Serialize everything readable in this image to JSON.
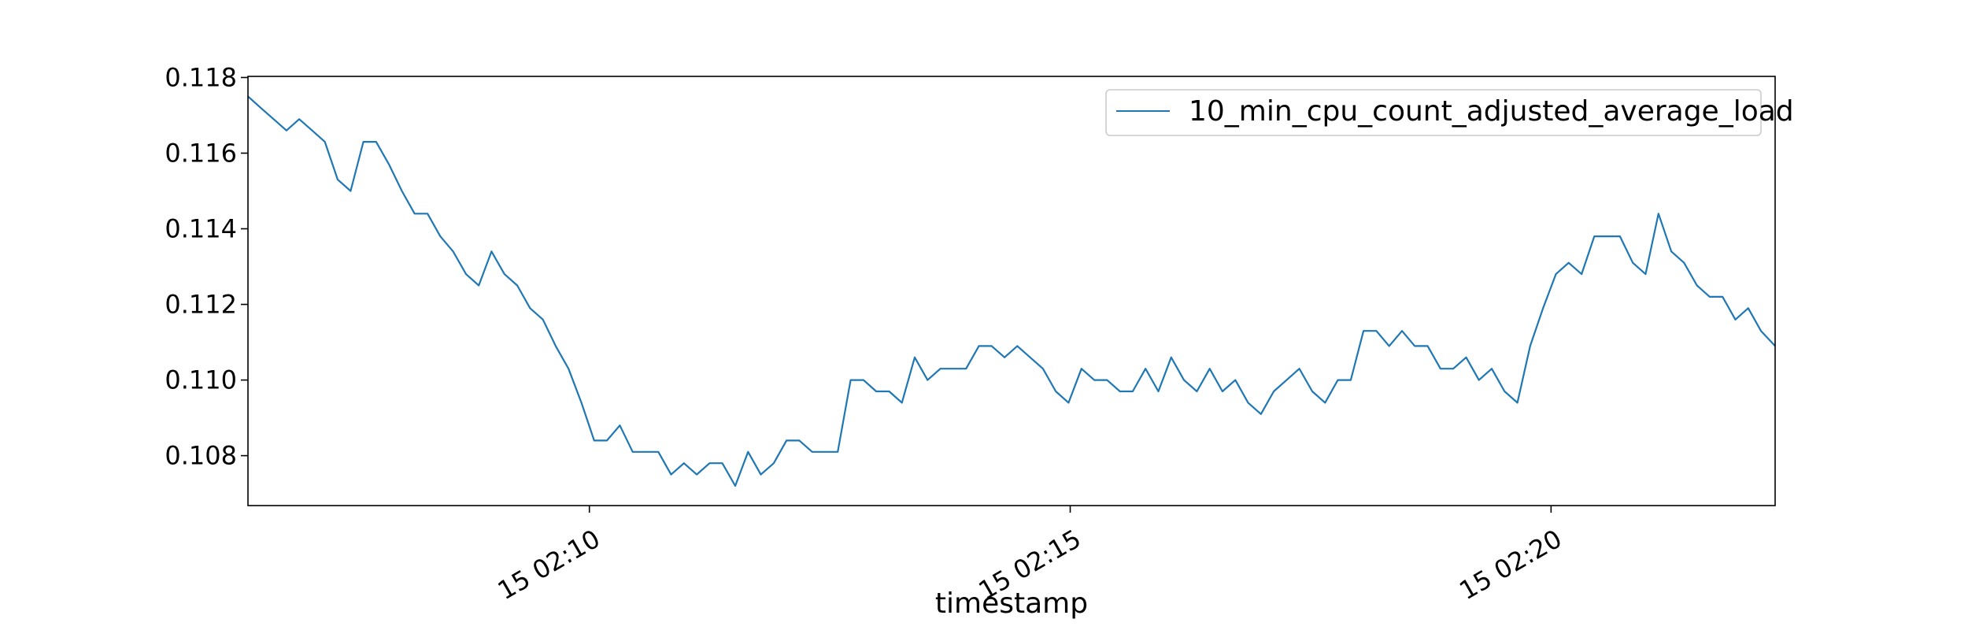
{
  "chart_data": {
    "type": "line",
    "xlabel": "timestamp",
    "ylabel": "",
    "title": "",
    "ylim": [
      0.10668,
      0.11803
    ],
    "xlim_minutes": [
      6.45,
      22.33
    ],
    "grid": false,
    "legend_placement": "top-right",
    "x_ticks": [
      {
        "minute": 10,
        "label": "15 02:10"
      },
      {
        "minute": 15,
        "label": "15 02:15"
      },
      {
        "minute": 20,
        "label": "15 02:20"
      }
    ],
    "y_ticks": [
      {
        "value": 0.108,
        "label": "0.108"
      },
      {
        "value": 0.11,
        "label": "0.110"
      },
      {
        "value": 0.112,
        "label": "0.112"
      },
      {
        "value": 0.114,
        "label": "0.114"
      },
      {
        "value": 0.116,
        "label": "0.116"
      },
      {
        "value": 0.118,
        "label": "0.118"
      }
    ],
    "series": [
      {
        "name": "10_min_cpu_count_adjusted_average_load",
        "color": "#1f77b4",
        "x_minutes": [
          6.45,
          6.583,
          6.717,
          6.85,
          6.983,
          7.117,
          7.25,
          7.383,
          7.517,
          7.65,
          7.783,
          7.917,
          8.05,
          8.183,
          8.317,
          8.45,
          8.583,
          8.717,
          8.85,
          8.983,
          9.117,
          9.25,
          9.383,
          9.517,
          9.65,
          9.783,
          9.917,
          10.05,
          10.183,
          10.317,
          10.45,
          10.583,
          10.717,
          10.85,
          10.983,
          11.117,
          11.25,
          11.383,
          11.517,
          11.65,
          11.783,
          11.917,
          12.05,
          12.183,
          12.317,
          12.45,
          12.583,
          12.717,
          12.85,
          12.983,
          13.117,
          13.25,
          13.383,
          13.517,
          13.65,
          13.783,
          13.917,
          14.05,
          14.183,
          14.317,
          14.45,
          14.583,
          14.717,
          14.85,
          14.983,
          15.117,
          15.25,
          15.383,
          15.517,
          15.65,
          15.783,
          15.917,
          16.05,
          16.183,
          16.317,
          16.45,
          16.583,
          16.717,
          16.85,
          16.983,
          17.117,
          17.25,
          17.383,
          17.517,
          17.65,
          17.783,
          17.917,
          18.05,
          18.183,
          18.317,
          18.45,
          18.583,
          18.717,
          18.85,
          18.983,
          19.117,
          19.25,
          19.383,
          19.517,
          19.65,
          19.783,
          19.917,
          20.05,
          20.183,
          20.317,
          20.45,
          20.583,
          20.717,
          20.85,
          20.983,
          21.117,
          21.25,
          21.383,
          21.517,
          21.65,
          21.783,
          21.917,
          22.05,
          22.183,
          22.33
        ],
        "values": [
          0.1175,
          0.1172,
          0.1169,
          0.1166,
          0.1169,
          0.1166,
          0.1163,
          0.1153,
          0.115,
          0.1163,
          0.1163,
          0.1157,
          0.115,
          0.1144,
          0.1144,
          0.1138,
          0.1134,
          0.1128,
          0.1125,
          0.1134,
          0.1128,
          0.1125,
          0.1119,
          0.1116,
          0.1109,
          0.1103,
          0.1094,
          0.1084,
          0.1084,
          0.1088,
          0.1081,
          0.1081,
          0.1081,
          0.1075,
          0.1078,
          0.1075,
          0.1078,
          0.1078,
          0.1072,
          0.1081,
          0.1075,
          0.1078,
          0.1084,
          0.1084,
          0.1081,
          0.1081,
          0.1081,
          0.11,
          0.11,
          0.1097,
          0.1097,
          0.1094,
          0.1106,
          0.11,
          0.1103,
          0.1103,
          0.1103,
          0.1109,
          0.1109,
          0.1106,
          0.1109,
          0.1106,
          0.1103,
          0.1097,
          0.1094,
          0.1103,
          0.11,
          0.11,
          0.1097,
          0.1097,
          0.1103,
          0.1097,
          0.1106,
          0.11,
          0.1097,
          0.1103,
          0.1097,
          0.11,
          0.1094,
          0.1091,
          0.1097,
          0.11,
          0.1103,
          0.1097,
          0.1094,
          0.11,
          0.11,
          0.1113,
          0.1113,
          0.1109,
          0.1113,
          0.1109,
          0.1109,
          0.1103,
          0.1103,
          0.1106,
          0.11,
          0.1103,
          0.1097,
          0.1094,
          0.1109,
          0.1119,
          0.1128,
          0.1131,
          0.1128,
          0.1138,
          0.1138,
          0.1138,
          0.1131,
          0.1128,
          0.1144,
          0.1134,
          0.1131,
          0.1125,
          0.1122,
          0.1122,
          0.1116,
          0.1119,
          0.1113,
          0.1109
        ]
      }
    ]
  }
}
